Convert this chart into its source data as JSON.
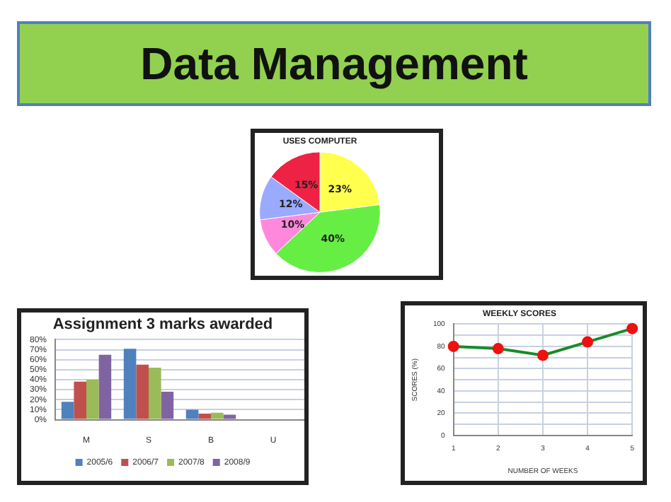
{
  "chart_data": [
    {
      "type": "other",
      "title": "Data Management"
    },
    {
      "type": "pie",
      "title": "USES COMPUTER",
      "categories": [
        null,
        null,
        null,
        null,
        null
      ],
      "values": [
        23,
        40,
        10,
        12,
        15
      ],
      "colors": [
        "#ffff4d",
        "#66ee44",
        "#ff88dd",
        "#99aaff",
        "#ee2244"
      ],
      "value_labels": [
        "23%",
        "40%",
        "10%",
        "12%",
        "15%"
      ]
    },
    {
      "type": "bar",
      "title": "Assignment 3 marks awarded",
      "categories": [
        "M",
        "S",
        "B",
        "U"
      ],
      "series": [
        {
          "name": "2005/6",
          "color": "#4f81bd",
          "values": [
            18,
            71,
            10,
            0
          ]
        },
        {
          "name": "2006/7",
          "color": "#c0504d",
          "values": [
            38,
            55,
            6,
            0
          ]
        },
        {
          "name": "2007/8",
          "color": "#9bbb59",
          "values": [
            40,
            52,
            7,
            0
          ]
        },
        {
          "name": "2008/9",
          "color": "#8064a2",
          "values": [
            65,
            28,
            5,
            0
          ]
        }
      ],
      "ylim": [
        0,
        80
      ],
      "yticks": [
        {
          "value": 0,
          "label": "0%"
        },
        {
          "value": 10,
          "label": "10%"
        },
        {
          "value": 20,
          "label": "20%"
        },
        {
          "value": 30,
          "label": "30%"
        },
        {
          "value": 40,
          "label": "40%"
        },
        {
          "value": 50,
          "label": "50%"
        },
        {
          "value": 60,
          "label": "60%"
        },
        {
          "value": 70,
          "label": "70%"
        },
        {
          "value": 80,
          "label": "80%"
        }
      ],
      "grid": "y",
      "legend": "bottom"
    },
    {
      "type": "line",
      "title": "WEEKLY SCORES",
      "xlabel": "NUMBER OF WEEKS",
      "ylabel": "SCORES (%)",
      "x": [
        1,
        2,
        3,
        4,
        5
      ],
      "series": [
        {
          "color": "#1a8a2a",
          "values": [
            80,
            78,
            72,
            84,
            96
          ]
        }
      ],
      "xlim": [
        1,
        5
      ],
      "xticks": [
        1,
        2,
        3,
        4,
        5
      ],
      "ylim": [
        0,
        100
      ],
      "yticks": [
        0,
        {
          "value": 10,
          "label": null
        },
        20,
        {
          "value": 30,
          "label": null
        },
        40,
        {
          "value": 50,
          "label": null
        },
        60,
        {
          "value": 70,
          "label": null
        },
        80,
        {
          "value": 90,
          "label": null
        },
        100
      ],
      "grid": true,
      "marker": "circle"
    }
  ]
}
